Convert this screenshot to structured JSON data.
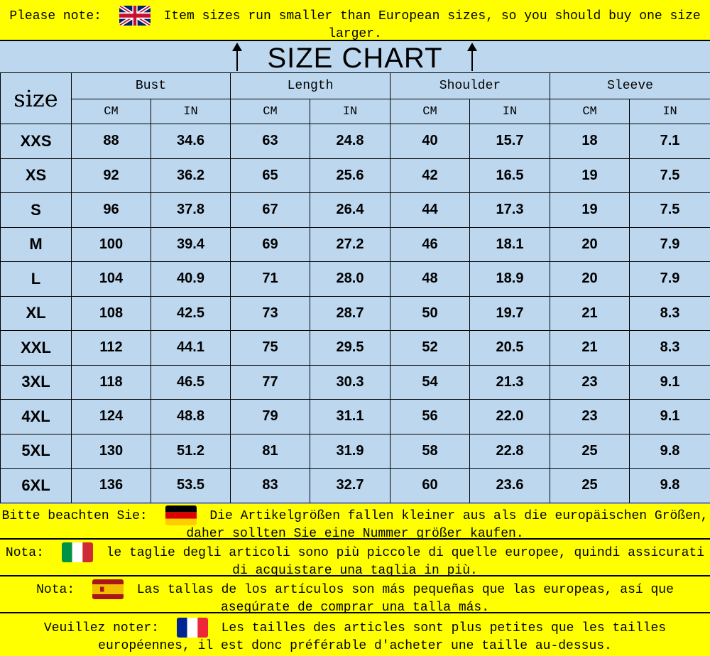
{
  "notes": {
    "en": {
      "label": "Please note:",
      "text": "Item sizes run smaller than European sizes, so you should buy one size larger.",
      "flag": "uk-flag"
    },
    "de": {
      "label": "Bitte beachten Sie:",
      "text": "Die Artikelgrößen fallen kleiner aus als die europäischen Größen, daher sollten Sie eine Nummer größer kaufen.",
      "flag": "germany-flag"
    },
    "it": {
      "label": "Nota:",
      "text": "le taglie degli articoli sono più piccole di quelle europee, quindi assicurati di acquistare una taglia in più.",
      "flag": "italy-flag"
    },
    "es": {
      "label": "Nota:",
      "text": "Las tallas de los artículos son más pequeñas que las europeas, así que asegúrate de comprar una talla más.",
      "flag": "spain-flag"
    },
    "fr": {
      "label": "Veuillez noter:",
      "text": "Les tailles des articles sont plus petites que les tailles européennes, il est donc préférable d'acheter une taille au-dessus.",
      "flag": "france-flag"
    }
  },
  "colors": {
    "note_bg": "#ffff00",
    "chart_bg": "#bdd7ee"
  },
  "chart_data": {
    "type": "table",
    "title": "SIZE CHART",
    "size_header": "size",
    "groups": [
      "Bust",
      "Length",
      "Shoulder",
      "Sleeve"
    ],
    "units": [
      "CM",
      "IN"
    ],
    "rows": [
      [
        "XXS",
        "88",
        "34.6",
        "63",
        "24.8",
        "40",
        "15.7",
        "18",
        "7.1"
      ],
      [
        "XS",
        "92",
        "36.2",
        "65",
        "25.6",
        "42",
        "16.5",
        "19",
        "7.5"
      ],
      [
        "S",
        "96",
        "37.8",
        "67",
        "26.4",
        "44",
        "17.3",
        "19",
        "7.5"
      ],
      [
        "M",
        "100",
        "39.4",
        "69",
        "27.2",
        "46",
        "18.1",
        "20",
        "7.9"
      ],
      [
        "L",
        "104",
        "40.9",
        "71",
        "28.0",
        "48",
        "18.9",
        "20",
        "7.9"
      ],
      [
        "XL",
        "108",
        "42.5",
        "73",
        "28.7",
        "50",
        "19.7",
        "21",
        "8.3"
      ],
      [
        "XXL",
        "112",
        "44.1",
        "75",
        "29.5",
        "52",
        "20.5",
        "21",
        "8.3"
      ],
      [
        "3XL",
        "118",
        "46.5",
        "77",
        "30.3",
        "54",
        "21.3",
        "23",
        "9.1"
      ],
      [
        "4XL",
        "124",
        "48.8",
        "79",
        "31.1",
        "56",
        "22.0",
        "23",
        "9.1"
      ],
      [
        "5XL",
        "130",
        "51.2",
        "81",
        "31.9",
        "58",
        "22.8",
        "25",
        "9.8"
      ],
      [
        "6XL",
        "136",
        "53.5",
        "83",
        "32.7",
        "60",
        "23.6",
        "25",
        "9.8"
      ]
    ]
  }
}
